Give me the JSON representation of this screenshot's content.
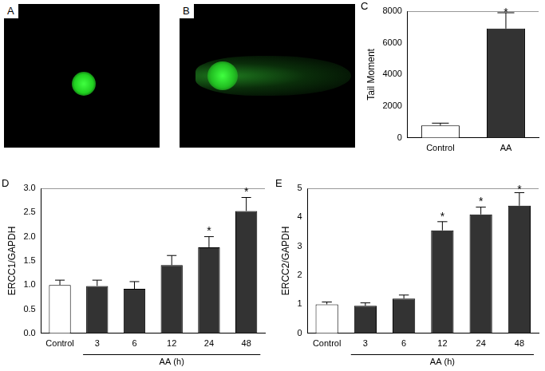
{
  "images": [
    {
      "label": "A"
    },
    {
      "label": "B"
    }
  ],
  "chart_data": [
    {
      "type": "bar",
      "label": "C",
      "y_label": "Tail Moment",
      "categories": [
        "Control",
        "AA"
      ],
      "values": [
        780,
        6900
      ],
      "errors": [
        150,
        1000
      ],
      "colors": [
        "#ffffff",
        "#333333"
      ],
      "ylim": [
        0,
        8000
      ],
      "yticks": [
        0,
        2000,
        4000,
        6000,
        8000
      ],
      "grid": false,
      "annotations": [
        {
          "category": "AA",
          "text": "*"
        }
      ]
    },
    {
      "type": "bar",
      "label": "D",
      "y_label": "ERCC1/GAPDH",
      "categories": [
        "Control",
        "3",
        "6",
        "12",
        "24",
        "48"
      ],
      "values": [
        1.0,
        0.98,
        0.92,
        1.41,
        1.78,
        2.53
      ],
      "errors": [
        0.1,
        0.12,
        0.15,
        0.2,
        0.22,
        0.28
      ],
      "colors": [
        "#ffffff",
        "#333333",
        "#333333",
        "#333333",
        "#333333",
        "#333333"
      ],
      "ylim": [
        0,
        3
      ],
      "yticks": [
        {
          "value": 0,
          "label": "0.0"
        },
        {
          "value": 0.5,
          "label": "0.5"
        },
        {
          "value": 1,
          "label": "1.0"
        },
        {
          "value": 1.5,
          "label": "1.5"
        },
        {
          "value": 2,
          "label": "2.0"
        },
        {
          "value": 2.5,
          "label": "2.5"
        },
        {
          "value": 3,
          "label": "3.0"
        }
      ],
      "grid": false,
      "groups": [
        {
          "label": "AA (h)",
          "categories": [
            "3",
            "6",
            "12",
            "24",
            "48"
          ]
        }
      ],
      "annotations": [
        {
          "category": "24",
          "text": "*"
        },
        {
          "category": "48",
          "text": "*"
        }
      ]
    },
    {
      "type": "bar",
      "label": "E",
      "y_label": "ERCC2/GAPDH",
      "categories": [
        "Control",
        "3",
        "6",
        "12",
        "24",
        "48"
      ],
      "values": [
        1.0,
        0.95,
        1.2,
        3.55,
        4.1,
        4.4
      ],
      "errors": [
        0.08,
        0.1,
        0.12,
        0.3,
        0.25,
        0.45
      ],
      "colors": [
        "#ffffff",
        "#333333",
        "#333333",
        "#333333",
        "#333333",
        "#333333"
      ],
      "ylim": [
        0,
        5
      ],
      "yticks": [
        0,
        1,
        2,
        3,
        4,
        5
      ],
      "grid": false,
      "groups": [
        {
          "label": "AA (h)",
          "categories": [
            "3",
            "6",
            "12",
            "24",
            "48"
          ]
        }
      ],
      "annotations": [
        {
          "category": "12",
          "text": "*"
        },
        {
          "category": "24",
          "text": "*"
        },
        {
          "category": "48",
          "text": "*"
        }
      ]
    }
  ]
}
